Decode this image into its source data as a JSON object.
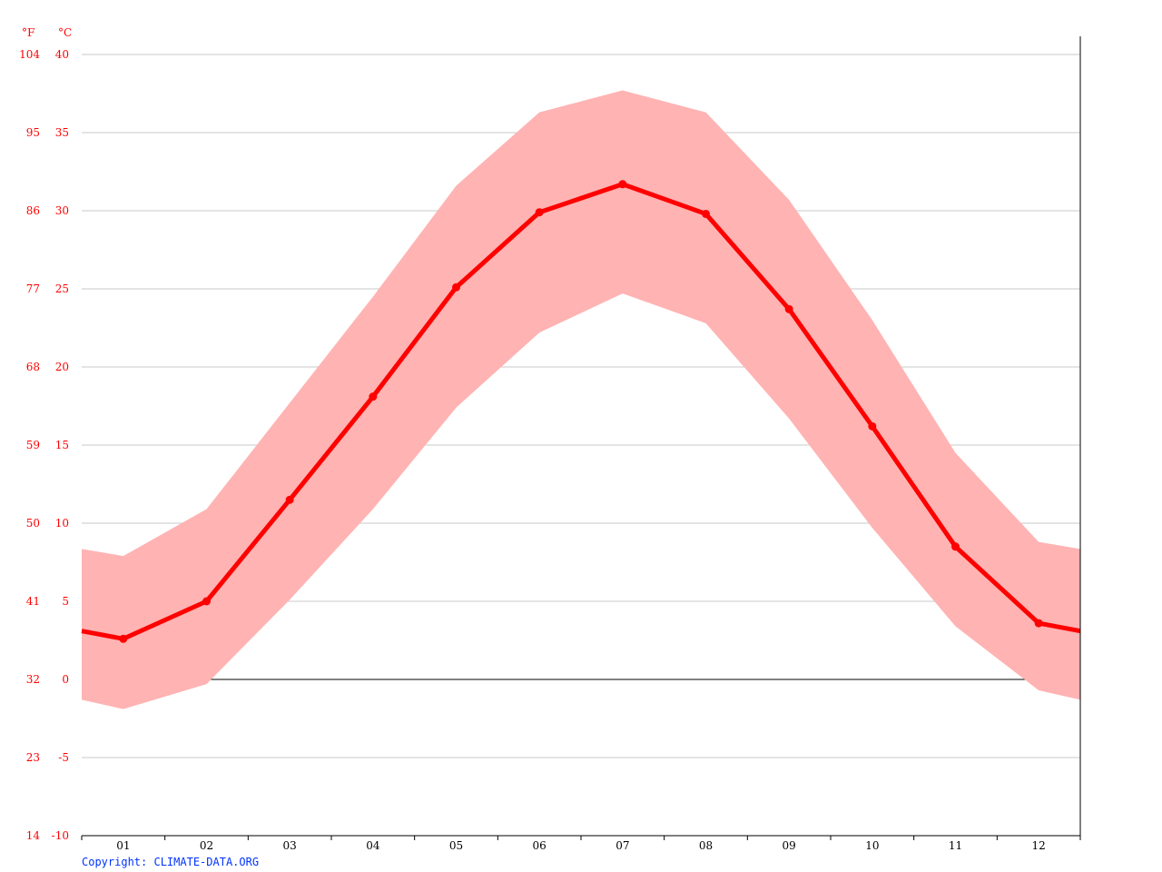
{
  "chart_data": {
    "type": "line",
    "categories": [
      "01",
      "02",
      "03",
      "04",
      "05",
      "06",
      "07",
      "08",
      "09",
      "10",
      "11",
      "12"
    ],
    "series": [
      {
        "role": "mean",
        "values": [
          2.6,
          5.0,
          11.5,
          18.1,
          25.1,
          29.9,
          31.7,
          29.8,
          23.7,
          16.2,
          8.5,
          3.6
        ],
        "color": "#ff0000"
      },
      {
        "role": "max",
        "values": [
          7.9,
          10.9,
          17.7,
          24.5,
          31.6,
          36.3,
          37.7,
          36.3,
          30.7,
          23.0,
          14.5,
          8.8
        ],
        "color": "#ffb3b3"
      },
      {
        "role": "min",
        "values": [
          -1.9,
          -0.3,
          5.1,
          10.9,
          17.4,
          22.2,
          24.7,
          22.8,
          16.7,
          9.7,
          3.4,
          -0.7
        ],
        "color": "#ffb3b3"
      }
    ],
    "ylim": [
      -10,
      40
    ],
    "yticks_c": [
      "40",
      "35",
      "30",
      "25",
      "20",
      "15",
      "10",
      "5",
      "0",
      "-5",
      "-10"
    ],
    "yticks_f": [
      "104",
      "95",
      "86",
      "77",
      "68",
      "59",
      "50",
      "41",
      "32",
      "23",
      "14"
    ],
    "unit_f": "°F",
    "unit_c": "°C",
    "grid": true
  },
  "copyright": "Copyright: CLIMATE-DATA.ORG"
}
